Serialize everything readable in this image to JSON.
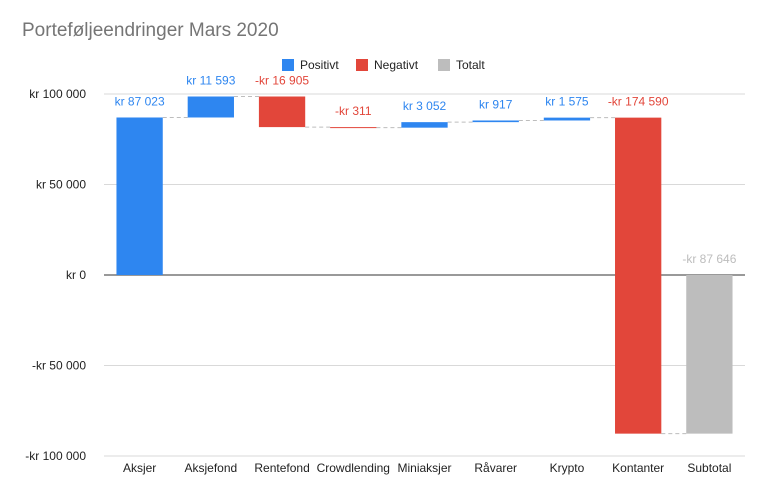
{
  "chart_data": {
    "type": "waterfall",
    "title": "Porteføljeendringer Mars 2020",
    "xlabel": "",
    "ylabel": "",
    "ylim": [
      -100000,
      100000
    ],
    "yticks": [
      100000,
      50000,
      0,
      -50000,
      -100000
    ],
    "ytick_labels": [
      "kr  100 000",
      "kr  50 000",
      "kr  0",
      "-kr  50 000",
      "-kr  100 000"
    ],
    "grid": true,
    "legend_position": "top",
    "legend": [
      {
        "name": "Positivt",
        "color": "#2e86f0"
      },
      {
        "name": "Negativt",
        "color": "#e2463a"
      },
      {
        "name": "Totalt",
        "color": "#bdbdbd"
      }
    ],
    "categories": [
      "Aksjer",
      "Aksjefond",
      "Rentefond",
      "Crowdlending",
      "Miniaksjer",
      "Råvarer",
      "Krypto",
      "Kontanter",
      "Subtotal"
    ],
    "values": [
      87023,
      11593,
      -16905,
      -311,
      3052,
      917,
      1575,
      -174590,
      -87646
    ],
    "kinds": [
      "pos",
      "pos",
      "neg",
      "neg",
      "pos",
      "pos",
      "pos",
      "neg",
      "total"
    ],
    "value_labels": [
      "kr  87 023",
      "kr  11 593",
      "-kr  16 905",
      "-kr  311",
      "kr  3 052",
      "kr  917",
      "kr  1 575",
      "-kr  174 590",
      "-kr  87 646"
    ]
  }
}
